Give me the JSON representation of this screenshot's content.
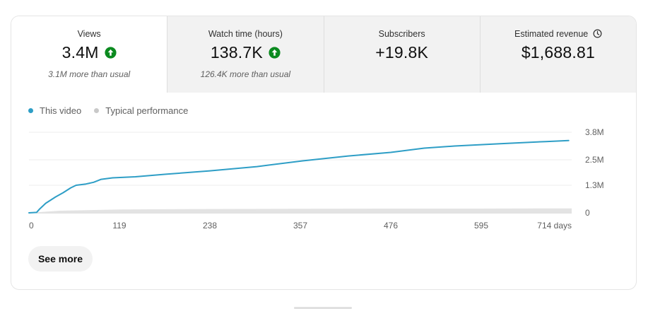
{
  "metrics": [
    {
      "label": "Views",
      "value": "3.4M",
      "trend_icon": "arrow-up-icon",
      "sub": "3.1M more than usual",
      "active": true
    },
    {
      "label": "Watch time (hours)",
      "value": "138.7K",
      "trend_icon": "arrow-up-icon",
      "sub": "126.4K more than usual",
      "active": false
    },
    {
      "label": "Subscribers",
      "value": "+19.8K",
      "active": false
    },
    {
      "label": "Estimated revenue",
      "value": "$1,688.81",
      "label_icon": "clock-icon",
      "active": false
    }
  ],
  "colors": {
    "this_video": "#2e9ec6",
    "typical": "#e3e3e3",
    "typical_dot": "#c9c9c9",
    "up_arrow": "#0b8a1f"
  },
  "chart_data": {
    "type": "line",
    "title": "",
    "xlabel": "",
    "ylabel": "",
    "x_ticks": [
      "0",
      "119",
      "238",
      "357",
      "476",
      "595",
      "714 days"
    ],
    "x_tick_values": [
      0,
      119,
      238,
      357,
      476,
      595,
      714
    ],
    "y_ticks": [
      "3.8M",
      "2.5M",
      "1.3M",
      "0"
    ],
    "y_tick_values": [
      3.8,
      2.5,
      1.3,
      0
    ],
    "xlim": [
      0,
      714
    ],
    "ylim": [
      0,
      3.8
    ],
    "y_unit": "M views",
    "grid": true,
    "legend_position": "top-left",
    "series": [
      {
        "name": "This video",
        "color": "#2e9ec6",
        "x": [
          0,
          10,
          14,
          22,
          35,
          45,
          55,
          62,
          75,
          85,
          95,
          110,
          140,
          180,
          238,
          300,
          360,
          420,
          476,
          520,
          560,
          620,
          680,
          710
        ],
        "y": [
          0.0,
          0.02,
          0.18,
          0.45,
          0.75,
          0.95,
          1.18,
          1.3,
          1.36,
          1.44,
          1.58,
          1.65,
          1.7,
          1.82,
          1.98,
          2.18,
          2.45,
          2.68,
          2.85,
          3.05,
          3.15,
          3.26,
          3.36,
          3.41
        ]
      },
      {
        "name": "Typical performance",
        "color": "#e3e3e3",
        "x": [
          0,
          40,
          119,
          238,
          357,
          476,
          595,
          714
        ],
        "y": [
          0.0,
          0.1,
          0.16,
          0.18,
          0.19,
          0.2,
          0.2,
          0.21
        ]
      }
    ]
  },
  "legend": {
    "this_video": "This video",
    "typical": "Typical performance"
  },
  "see_more_label": "See more"
}
